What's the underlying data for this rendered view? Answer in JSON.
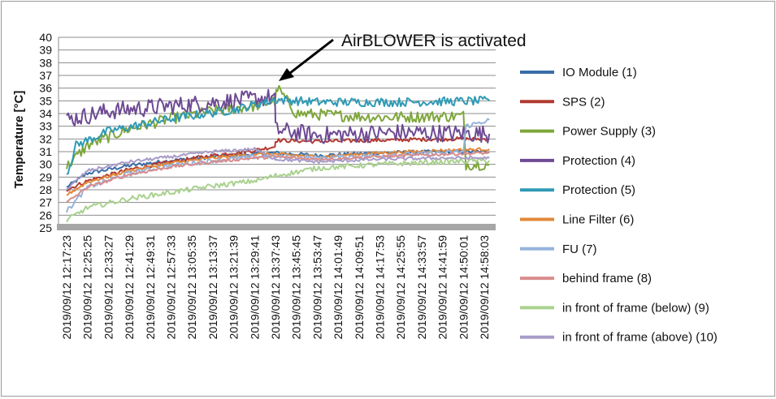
{
  "chart_data": {
    "type": "line",
    "ylabel": "Temperature [°C]",
    "ylim": [
      25,
      40
    ],
    "yticks": [
      25,
      26,
      27,
      28,
      29,
      30,
      31,
      32,
      33,
      34,
      35,
      36,
      37,
      38,
      39,
      40
    ],
    "xtick_labels": [
      "2019/09/12 12:17:23",
      "2019/09/12 12:25:25",
      "2019/09/12 12:33:27",
      "2019/09/12 12:41:29",
      "2019/09/12 12:49:31",
      "2019/09/12 12:57:33",
      "2019/09/12 13:05:35",
      "2019/09/12 13:13:37",
      "2019/09/12 13:21:39",
      "2019/09/12 13:29:41",
      "2019/09/12 13:37:43",
      "2019/09/12 13:45:45",
      "2019/09/12 13:53:47",
      "2019/09/12 14:01:49",
      "2019/09/12 14:09:51",
      "2019/09/12 14:17:53",
      "2019/09/12 14:25:55",
      "2019/09/12 14:33:57",
      "2019/09/12 14:41:59",
      "2019/09/12 14:50:01",
      "2019/09/12 14:58:03"
    ],
    "grid": true,
    "legend_position": "right",
    "annotation": {
      "text": "AirBLOWER is activated",
      "at_x": "2019/09/12 13:37:43"
    },
    "series": [
      {
        "name": "IO Module (1)",
        "color": "#3a6ea8",
        "noise": 0.15,
        "x": [
          "2019/09/12 12:17:23",
          "2019/09/12 12:25:25",
          "2019/09/12 12:41:29",
          "2019/09/12 12:57:33",
          "2019/09/12 13:13:37",
          "2019/09/12 13:29:41",
          "2019/09/12 13:37:43",
          "2019/09/12 13:53:47",
          "2019/09/12 14:17:53",
          "2019/09/12 14:41:59",
          "2019/09/12 15:00:00"
        ],
        "y": [
          28.2,
          29.3,
          29.9,
          30.3,
          30.6,
          30.8,
          30.9,
          30.7,
          30.9,
          31.0,
          31.0
        ]
      },
      {
        "name": "SPS (2)",
        "color": "#b23a32",
        "noise": 0.15,
        "x": [
          "2019/09/12 12:17:23",
          "2019/09/12 12:25:25",
          "2019/09/12 12:41:29",
          "2019/09/12 12:57:33",
          "2019/09/12 13:13:37",
          "2019/09/12 13:29:41",
          "2019/09/12 13:37:30",
          "2019/09/12 13:37:43",
          "2019/09/12 13:53:47",
          "2019/09/12 14:17:53",
          "2019/09/12 14:41:59",
          "2019/09/12 15:00:00"
        ],
        "y": [
          28.0,
          28.7,
          29.6,
          30.2,
          30.7,
          31.1,
          31.4,
          31.9,
          31.8,
          31.9,
          32.0,
          32.0
        ]
      },
      {
        "name": "Power Supply (3)",
        "color": "#7ea63a",
        "noise": 0.45,
        "x": [
          "2019/09/12 12:17:23",
          "2019/09/12 12:25:25",
          "2019/09/12 12:41:29",
          "2019/09/12 12:57:33",
          "2019/09/12 13:13:37",
          "2019/09/12 13:29:41",
          "2019/09/12 13:37:30",
          "2019/09/12 13:38:30",
          "2019/09/12 13:45:45",
          "2019/09/12 14:17:53",
          "2019/09/12 14:50:01",
          "2019/09/12 14:51:00",
          "2019/09/12 15:00:00"
        ],
        "y": [
          29.8,
          31.5,
          32.8,
          33.6,
          34.2,
          34.6,
          35.0,
          36.0,
          34.0,
          33.7,
          33.8,
          30.0,
          30.0
        ]
      },
      {
        "name": "Protection (4)",
        "color": "#6e4a94",
        "noise": 0.7,
        "x": [
          "2019/09/12 12:17:23",
          "2019/09/12 12:33:27",
          "2019/09/12 12:57:33",
          "2019/09/12 13:21:39",
          "2019/09/12 13:37:30",
          "2019/09/12 13:37:43",
          "2019/09/12 13:53:47",
          "2019/09/12 14:25:55",
          "2019/09/12 15:00:00"
        ],
        "y": [
          33.5,
          34.2,
          34.6,
          35.0,
          35.3,
          32.7,
          32.3,
          32.5,
          32.4
        ]
      },
      {
        "name": "Protection (5)",
        "color": "#2f9ab5",
        "noise": 0.35,
        "x": [
          "2019/09/12 12:17:23",
          "2019/09/12 12:21:00",
          "2019/09/12 12:33:27",
          "2019/09/12 12:57:33",
          "2019/09/12 13:21:39",
          "2019/09/12 13:37:43",
          "2019/09/12 13:53:47",
          "2019/09/12 14:25:55",
          "2019/09/12 15:00:00"
        ],
        "y": [
          29.2,
          31.5,
          32.6,
          33.6,
          34.3,
          35.1,
          34.9,
          34.9,
          35.0
        ]
      },
      {
        "name": "Line Filter (6)",
        "color": "#e2883a",
        "noise": 0.12,
        "x": [
          "2019/09/12 12:17:23",
          "2019/09/12 12:25:25",
          "2019/09/12 12:41:29",
          "2019/09/12 12:57:33",
          "2019/09/12 13:13:37",
          "2019/09/12 13:29:41",
          "2019/09/12 13:37:43",
          "2019/09/12 13:53:47",
          "2019/09/12 14:17:53",
          "2019/09/12 14:41:59",
          "2019/09/12 15:00:00"
        ],
        "y": [
          27.6,
          28.6,
          29.5,
          30.1,
          30.5,
          30.8,
          30.8,
          30.6,
          30.9,
          31.1,
          31.2
        ]
      },
      {
        "name": "FU (7)",
        "color": "#95b3dc",
        "noise": 0.18,
        "x": [
          "2019/09/12 12:17:23",
          "2019/09/12 12:25:25",
          "2019/09/12 12:41:29",
          "2019/09/12 12:57:33",
          "2019/09/12 13:13:37",
          "2019/09/12 13:29:41",
          "2019/09/12 13:37:43",
          "2019/09/12 13:53:47",
          "2019/09/12 14:17:53",
          "2019/09/12 14:41:59",
          "2019/09/12 14:50:01",
          "2019/09/12 14:51:00",
          "2019/09/12 15:00:00"
        ],
        "y": [
          26.3,
          28.2,
          29.3,
          29.9,
          30.3,
          30.6,
          30.6,
          30.5,
          30.7,
          30.9,
          31.0,
          33.0,
          33.5
        ]
      },
      {
        "name": "behind frame (8)",
        "color": "#d98c8c",
        "noise": 0.12,
        "x": [
          "2019/09/12 12:17:23",
          "2019/09/12 12:25:25",
          "2019/09/12 12:41:29",
          "2019/09/12 12:57:33",
          "2019/09/12 13:13:37",
          "2019/09/12 13:29:41",
          "2019/09/12 13:37:43",
          "2019/09/12 13:53:47",
          "2019/09/12 14:17:53",
          "2019/09/12 14:41:59",
          "2019/09/12 15:00:00"
        ],
        "y": [
          27.0,
          28.2,
          29.2,
          29.8,
          30.2,
          30.5,
          30.6,
          30.4,
          30.6,
          30.8,
          30.9
        ]
      },
      {
        "name": "in front of frame (below) (9)",
        "color": "#a9d18e",
        "noise": 0.2,
        "x": [
          "2019/09/12 12:17:23",
          "2019/09/12 12:25:25",
          "2019/09/12 12:41:29",
          "2019/09/12 12:57:33",
          "2019/09/12 13:13:37",
          "2019/09/12 13:29:41",
          "2019/09/12 13:37:43",
          "2019/09/12 13:53:47",
          "2019/09/12 14:17:53",
          "2019/09/12 14:41:59",
          "2019/09/12 15:00:00"
        ],
        "y": [
          25.6,
          26.6,
          27.3,
          27.8,
          28.3,
          28.7,
          29.1,
          29.7,
          30.0,
          30.2,
          30.3
        ]
      },
      {
        "name": "in front of frame (above) (10)",
        "color": "#a79bc8",
        "noise": 0.12,
        "x": [
          "2019/09/12 12:17:23",
          "2019/09/12 12:25:25",
          "2019/09/12 12:41:29",
          "2019/09/12 12:57:33",
          "2019/09/12 13:13:37",
          "2019/09/12 13:29:41",
          "2019/09/12 13:37:43",
          "2019/09/12 13:53:47",
          "2019/09/12 14:17:53",
          "2019/09/12 14:41:59",
          "2019/09/12 15:00:00"
        ],
        "y": [
          28.0,
          29.5,
          30.2,
          30.6,
          31.0,
          31.2,
          30.4,
          30.2,
          30.4,
          30.5,
          30.5
        ]
      }
    ]
  }
}
